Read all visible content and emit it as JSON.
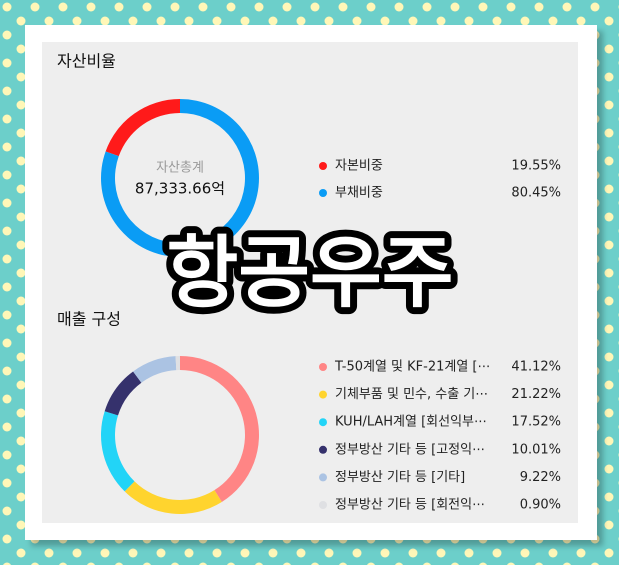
{
  "overlay_title": "항공우주",
  "chart_data": [
    {
      "type": "pie",
      "title": "자산비율",
      "center_label": "자산총계",
      "center_value": "87,333.66억",
      "direction": "counterclockwise",
      "categories": [
        "자본비중",
        "부채비중"
      ],
      "values": [
        19.55,
        80.45
      ],
      "value_labels": [
        "19.55%",
        "80.45%"
      ],
      "colors": [
        "#ff1a1a",
        "#0a9cf5"
      ]
    },
    {
      "type": "pie",
      "title": "매출 구성",
      "direction": "clockwise",
      "categories": [
        "T-50계열 및 KF-21계열 [⋯",
        "기체부품 및 민수, 수출 기⋯",
        "KUH/LAH계열 [회선익부⋯",
        "정부방산 기타 등 [고정익⋯",
        "정부방산 기타 등 [기타]",
        "정부방산 기타 등 [회전익⋯"
      ],
      "values": [
        41.12,
        21.22,
        17.52,
        10.01,
        9.22,
        0.9
      ],
      "value_labels": [
        "41.12%",
        "21.22%",
        "17.52%",
        "10.01%",
        "9.22%",
        "0.90%"
      ],
      "colors": [
        "#ff8585",
        "#ffd42e",
        "#22d4f7",
        "#35316c",
        "#abc3e3",
        "#dfe0e3"
      ]
    }
  ]
}
